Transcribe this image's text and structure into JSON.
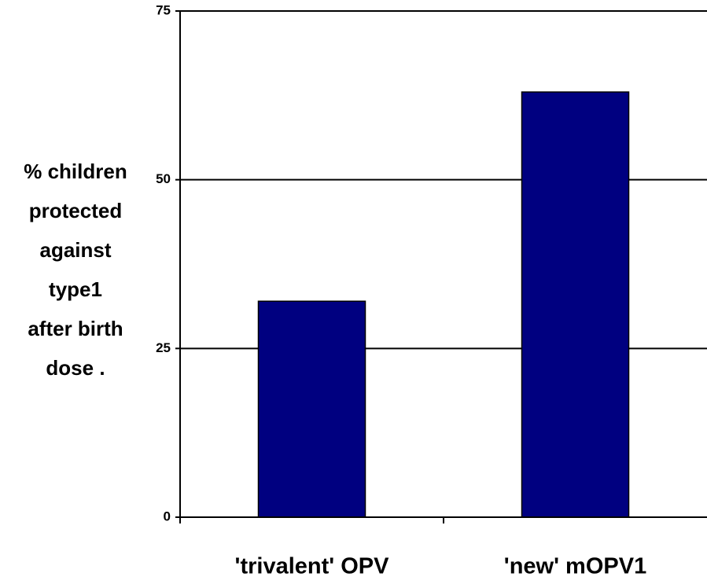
{
  "chart_data": {
    "type": "bar",
    "ylabel": [
      "% children",
      "protected",
      "against",
      "type1",
      "after birth",
      "dose ."
    ],
    "categories": [
      "'trivalent' OPV",
      "'new' mOPV1"
    ],
    "values": [
      32,
      63
    ],
    "color": "#000080",
    "ylim": [
      0,
      75
    ],
    "yticks": [
      0,
      25,
      50,
      75
    ],
    "grid": true
  }
}
